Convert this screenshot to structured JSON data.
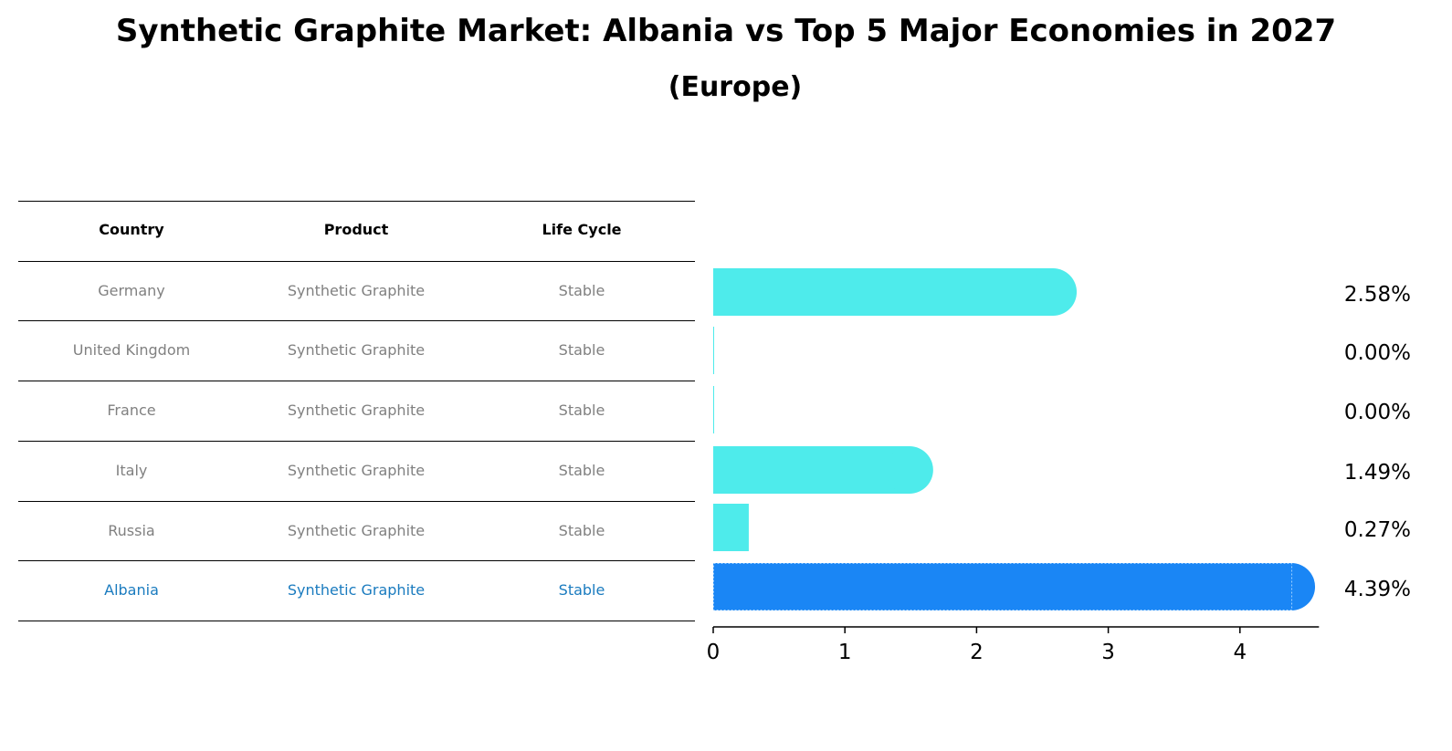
{
  "title": "Synthetic Graphite Market: Albania vs Top 5 Major Economies in 2027",
  "subtitle": "(Europe)",
  "table": {
    "headers": [
      "Country",
      "Product",
      "Life Cycle"
    ],
    "rows": [
      {
        "country": "Germany",
        "product": "Synthetic Graphite",
        "life_cycle": "Stable",
        "highlight": false
      },
      {
        "country": "United Kingdom",
        "product": "Synthetic Graphite",
        "life_cycle": "Stable",
        "highlight": false
      },
      {
        "country": "France",
        "product": "Synthetic Graphite",
        "life_cycle": "Stable",
        "highlight": false
      },
      {
        "country": "Italy",
        "product": "Synthetic Graphite",
        "life_cycle": "Stable",
        "highlight": false
      },
      {
        "country": "Russia",
        "product": "Synthetic Graphite",
        "life_cycle": "Stable",
        "highlight": false
      },
      {
        "country": "Albania",
        "product": "Synthetic Graphite",
        "life_cycle": "Stable",
        "highlight": true
      }
    ]
  },
  "colors": {
    "bar": "#4EEBEB",
    "highlight_bar": "#1A86F5",
    "highlight_text": "#1a7bbf",
    "muted_text": "#808080"
  },
  "chart_data": {
    "type": "bar",
    "orientation": "horizontal",
    "categories": [
      "Germany",
      "United Kingdom",
      "France",
      "Italy",
      "Russia",
      "Albania"
    ],
    "values": [
      2.58,
      0.0,
      0.0,
      1.49,
      0.27,
      4.39
    ],
    "value_labels": [
      "2.58%",
      "0.00%",
      "0.00%",
      "1.49%",
      "0.27%",
      "4.39%"
    ],
    "highlight": "Albania",
    "xlim": [
      0,
      4.6
    ],
    "xticks": [
      0,
      1,
      2,
      3,
      4
    ],
    "xtick_labels": [
      "0",
      "1",
      "2",
      "3",
      "4"
    ],
    "title": "Synthetic Graphite Market: Albania vs Top 5 Major Economies in 2027",
    "xlabel": "",
    "ylabel": ""
  }
}
